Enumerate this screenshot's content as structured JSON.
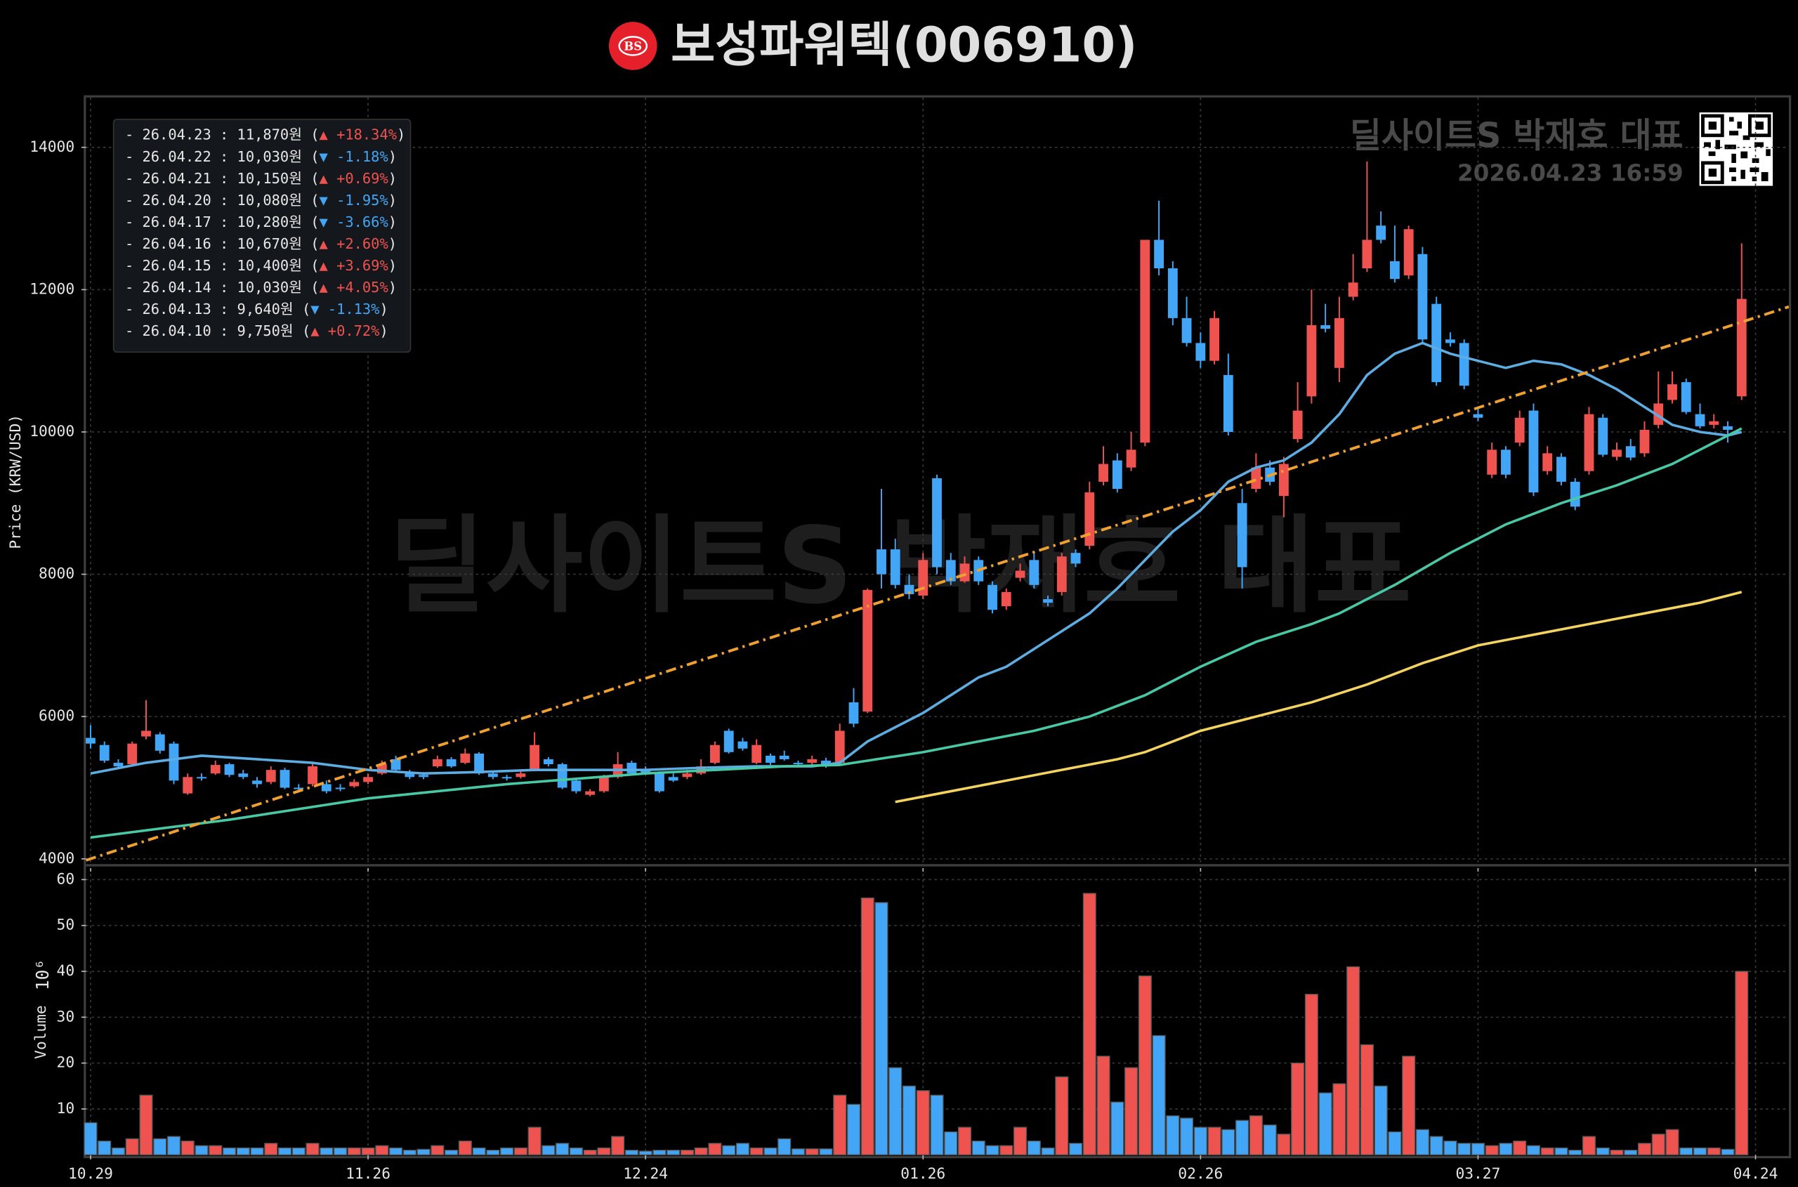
{
  "chart_data": {
    "type": "candlestick",
    "title": "보성파워텍(006910)",
    "logo_text": "BS",
    "watermark": "딜사이트S 박재호 대표",
    "watermark_time": "2026.04.23 16:59",
    "ylabel": "Price (KRW/USD)",
    "grid": true,
    "up_color": "#ef5350",
    "down_color": "#42a5f5",
    "xlim": [
      -0.33,
      122.4
    ],
    "xticks": [
      {
        "value": 0,
        "label": "10.29"
      },
      {
        "value": 20,
        "label": "11.26"
      },
      {
        "value": 40,
        "label": "12.24"
      },
      {
        "value": 60,
        "label": "01.26"
      },
      {
        "value": 80,
        "label": "02.26"
      },
      {
        "value": 100,
        "label": "03.27"
      },
      {
        "value": 120,
        "label": "04.24"
      }
    ],
    "ylim": [
      3950,
      14700
    ],
    "yticks": [
      4000,
      6000,
      8000,
      10000,
      12000,
      14000
    ],
    "open": [
      5700,
      5600,
      5350,
      5330,
      5720,
      5750,
      5620,
      4920,
      5150,
      5200,
      5330,
      5200,
      5100,
      5080,
      5250,
      5000,
      5050,
      5050,
      5000,
      5020,
      5080,
      5200,
      5400,
      5200,
      5180,
      5300,
      5400,
      5350,
      5480,
      5200,
      5150,
      5150,
      5250,
      5400,
      5330,
      5100,
      4900,
      4950,
      5150,
      5350,
      5250,
      5200,
      5150,
      5150,
      5200,
      5350,
      5800,
      5650,
      5350,
      5450,
      5450,
      5350,
      5350,
      5380,
      5350,
      6200,
      6070,
      8350,
      8350,
      7850,
      7700,
      9350,
      8200,
      7900,
      8200,
      7850,
      7550,
      7950,
      8200,
      7650,
      7750,
      8300,
      8400,
      9300,
      9600,
      9500,
      9850,
      12700,
      12300,
      11600,
      11250,
      11000,
      10800,
      9000,
      9200,
      9500,
      9100,
      9900,
      10500,
      11500,
      10900,
      11900,
      12300,
      12900,
      12400,
      12200,
      12500,
      11800,
      11300,
      11250,
      10250,
      9400,
      9750,
      9850,
      10300,
      9450,
      9650,
      9300,
      9450,
      10200,
      9650,
      9800,
      9700,
      10100,
      10450,
      10700,
      10250,
      10100,
      10080,
      10500
    ],
    "high": [
      5880,
      5650,
      5400,
      5650,
      6230,
      5780,
      5650,
      5200,
      5200,
      5380,
      5350,
      5250,
      5150,
      5300,
      5280,
      5050,
      5350,
      5100,
      5050,
      5120,
      5200,
      5380,
      5450,
      5250,
      5220,
      5450,
      5430,
      5550,
      5500,
      5230,
      5180,
      5250,
      5780,
      5430,
      5350,
      5120,
      4980,
      5180,
      5500,
      5380,
      5300,
      5230,
      5200,
      5250,
      5400,
      5650,
      5830,
      5700,
      5680,
      5480,
      5520,
      5380,
      5450,
      5420,
      5900,
      6400,
      7800,
      9200,
      8500,
      8000,
      8300,
      9400,
      8300,
      8250,
      8250,
      7900,
      7800,
      8150,
      8300,
      7700,
      8300,
      8350,
      9300,
      9800,
      9700,
      10000,
      12700,
      13250,
      12400,
      11900,
      11400,
      11700,
      11100,
      9200,
      9700,
      9600,
      9650,
      10700,
      12000,
      11800,
      11900,
      12500,
      13800,
      13100,
      12900,
      12900,
      12600,
      11900,
      11400,
      11300,
      10350,
      9850,
      9800,
      10300,
      10400,
      9800,
      9700,
      9350,
      10350,
      10250,
      9850,
      9900,
      10150,
      10850,
      10850,
      10750,
      10400,
      10250,
      10150,
      12650
    ],
    "low": [
      5550,
      5350,
      5280,
      5300,
      5680,
      5480,
      5050,
      4900,
      5100,
      5180,
      5150,
      5120,
      5000,
      5050,
      4980,
      4950,
      5020,
      4920,
      4950,
      5000,
      5050,
      5180,
      5220,
      5120,
      5120,
      5280,
      5280,
      5330,
      5180,
      5120,
      5100,
      5130,
      5230,
      5300,
      4980,
      4920,
      4880,
      4930,
      5130,
      5180,
      5180,
      4930,
      5080,
      5120,
      5180,
      5330,
      5480,
      5520,
      5330,
      5320,
      5380,
      5300,
      5320,
      5280,
      5330,
      5850,
      6050,
      7800,
      7800,
      7650,
      7650,
      8000,
      7850,
      7880,
      7850,
      7450,
      7500,
      7900,
      7800,
      7550,
      7700,
      8100,
      8350,
      9250,
      9150,
      9450,
      9800,
      12200,
      11500,
      11200,
      10900,
      10950,
      9950,
      7800,
      9150,
      9250,
      8800,
      9850,
      10400,
      11400,
      10700,
      11850,
      12250,
      12650,
      12100,
      12150,
      11250,
      10650,
      11200,
      10600,
      10150,
      9350,
      9350,
      9800,
      9100,
      9400,
      9250,
      8900,
      9400,
      9650,
      9600,
      9600,
      9650,
      10050,
      10400,
      10250,
      10050,
      10050,
      9850,
      10450
    ],
    "close": [
      5620,
      5380,
      5300,
      5620,
      5800,
      5520,
      5100,
      5150,
      5130,
      5320,
      5180,
      5150,
      5050,
      5250,
      5000,
      4980,
      5300,
      4950,
      4980,
      5080,
      5150,
      5330,
      5250,
      5150,
      5150,
      5400,
      5300,
      5480,
      5200,
      5150,
      5130,
      5200,
      5600,
      5330,
      5000,
      4950,
      4950,
      5150,
      5330,
      5200,
      5200,
      4950,
      5100,
      5200,
      5300,
      5600,
      5500,
      5550,
      5600,
      5350,
      5400,
      5330,
      5400,
      5300,
      5800,
      5900,
      7780,
      8000,
      7850,
      7720,
      8200,
      8100,
      7900,
      8150,
      7900,
      7500,
      7750,
      8050,
      7850,
      7600,
      8250,
      8150,
      9150,
      9550,
      9200,
      9750,
      12700,
      12300,
      11600,
      11250,
      11000,
      11600,
      10000,
      8100,
      9500,
      9300,
      9550,
      10300,
      11500,
      11450,
      11600,
      12100,
      12700,
      12700,
      12150,
      12850,
      11300,
      10700,
      11250,
      10650,
      10200,
      9750,
      9400,
      10200,
      9150,
      9700,
      9300,
      8950,
      10250,
      9680,
      9750,
      9640,
      10030,
      10400,
      10670,
      10280,
      10080,
      10150,
      10030,
      11870
    ],
    "volume": {
      "label": "Volume",
      "offset_label": "10⁶",
      "ylim": [
        0,
        62.5
      ],
      "yticks": [
        10,
        20,
        30,
        40,
        50,
        60
      ],
      "values": [
        7,
        3,
        1.5,
        3.5,
        13,
        3.5,
        4,
        3,
        2,
        2,
        1.5,
        1.5,
        1.5,
        2.5,
        1.5,
        1.5,
        2.5,
        1.5,
        1.5,
        1.5,
        1.5,
        2,
        1.5,
        1,
        1.2,
        2,
        1,
        3,
        1.5,
        1,
        1.5,
        1.5,
        6,
        2,
        2.5,
        1.5,
        1,
        1.5,
        4,
        1,
        0.8,
        1,
        1,
        1,
        1.5,
        2.5,
        2,
        2.5,
        1.5,
        1.5,
        3.5,
        1.3,
        1.3,
        1.3,
        13,
        11,
        56,
        55,
        19,
        15,
        14,
        13,
        5,
        6,
        3,
        2,
        2,
        6,
        3,
        1.5,
        17,
        2.5,
        57,
        21.5,
        11.5,
        19,
        39,
        26,
        8.5,
        8,
        6,
        6,
        5.5,
        7.5,
        8.5,
        6.5,
        4.5,
        20,
        35,
        13.5,
        15.5,
        41,
        24,
        15,
        5,
        21.5,
        5.5,
        4,
        3,
        2.5,
        2.5,
        2,
        2.5,
        3,
        2,
        1.5,
        1.5,
        1,
        4,
        1.5,
        1,
        1,
        2.5,
        4.5,
        5.5,
        1.5,
        1.5,
        1.5,
        1.2,
        40
      ]
    },
    "moving_averages": [
      {
        "color": "#5dade2",
        "x": [
          0,
          4,
          8,
          12,
          16,
          20,
          24,
          28,
          32,
          36,
          40,
          44,
          48,
          52,
          54,
          56,
          58,
          60,
          62,
          64,
          66,
          68,
          70,
          72,
          74,
          76,
          78,
          80,
          82,
          84,
          86,
          88,
          90,
          92,
          94,
          96,
          98,
          100,
          102,
          104,
          106,
          108,
          110,
          112,
          114,
          116,
          118,
          119
        ],
        "values": [
          5200,
          5350,
          5450,
          5400,
          5350,
          5250,
          5200,
          5220,
          5250,
          5250,
          5250,
          5280,
          5300,
          5300,
          5350,
          5650,
          5850,
          6050,
          6300,
          6550,
          6700,
          6950,
          7200,
          7450,
          7800,
          8200,
          8600,
          8900,
          9300,
          9500,
          9600,
          9850,
          10250,
          10800,
          11100,
          11250,
          11100,
          11000,
          10900,
          11000,
          10950,
          10800,
          10600,
          10350,
          10100,
          10000,
          9950,
          10000
        ]
      },
      {
        "color": "#48c9a5",
        "x": [
          0,
          10,
          20,
          30,
          40,
          50,
          54,
          56,
          60,
          64,
          68,
          72,
          76,
          80,
          84,
          88,
          90,
          94,
          98,
          102,
          106,
          110,
          114,
          116,
          119
        ],
        "values": [
          4300,
          4550,
          4850,
          5050,
          5200,
          5300,
          5320,
          5380,
          5500,
          5650,
          5800,
          6000,
          6300,
          6700,
          7050,
          7300,
          7450,
          7850,
          8300,
          8700,
          9000,
          9250,
          9550,
          9750,
          10050
        ]
      },
      {
        "color": "#f4d35e",
        "x": [
          58,
          62,
          66,
          70,
          74,
          76,
          80,
          84,
          88,
          92,
          96,
          100,
          104,
          108,
          112,
          116,
          119
        ],
        "values": [
          4800,
          4950,
          5100,
          5250,
          5400,
          5500,
          5800,
          6000,
          6200,
          6450,
          6750,
          7000,
          7150,
          7300,
          7450,
          7600,
          7750
        ]
      }
    ],
    "trendline": {
      "color": "#f0a030",
      "x": [
        -0.33,
        122.4
      ],
      "values": [
        3980,
        11760
      ]
    },
    "legend_rows": [
      {
        "label": "- 26.04.23 : 11,870원 (",
        "change": "▲ +18.34%",
        "end": ")",
        "direction": "up"
      },
      {
        "label": "- 26.04.22 : 10,030원 (",
        "change": "▼ -1.18%",
        "end": ")",
        "direction": "down"
      },
      {
        "label": "- 26.04.21 : 10,150원 (",
        "change": "▲ +0.69%",
        "end": ")",
        "direction": "up"
      },
      {
        "label": "- 26.04.20 : 10,080원 (",
        "change": "▼ -1.95%",
        "end": ")",
        "direction": "down"
      },
      {
        "label": "- 26.04.17 : 10,280원 (",
        "change": "▼ -3.66%",
        "end": ")",
        "direction": "down"
      },
      {
        "label": "- 26.04.16 : 10,670원 (",
        "change": "▲ +2.60%",
        "end": ")",
        "direction": "up"
      },
      {
        "label": "- 26.04.15 : 10,400원 (",
        "change": "▲ +3.69%",
        "end": ")",
        "direction": "up"
      },
      {
        "label": "- 26.04.14 : 10,030원 (",
        "change": "▲ +4.05%",
        "end": ")",
        "direction": "up"
      },
      {
        "label": "- 26.04.13 : 9,640원 (",
        "change": "▼ -1.13%",
        "end": ")",
        "direction": "down"
      },
      {
        "label": "- 26.04.10 : 9,750원 (",
        "change": "▲ +0.72%",
        "end": ")",
        "direction": "up"
      }
    ]
  }
}
